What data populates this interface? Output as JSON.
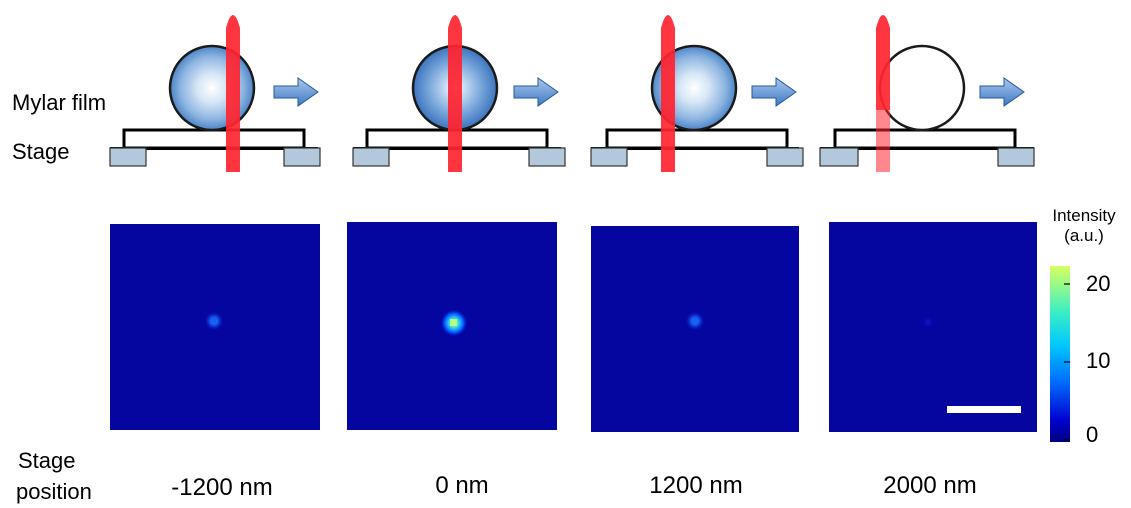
{
  "labels": {
    "mylar_film": "Mylar film",
    "stage": "Stage",
    "stage_position_line1": "Stage",
    "stage_position_line2": "position"
  },
  "panels": [
    {
      "position": "-1200 nm",
      "ball_fill": "partial",
      "spot_intensity": 8
    },
    {
      "position": "0 nm",
      "ball_fill": "full",
      "spot_intensity": 20
    },
    {
      "position": "1200 nm",
      "ball_fill": "partial",
      "spot_intensity": 8
    },
    {
      "position": "2000 nm",
      "ball_fill": "empty",
      "spot_intensity": 1
    }
  ],
  "colorbar": {
    "title_line1": "Intensity",
    "title_line2": "(a.u.)",
    "ticks": [
      "20",
      "10",
      "0"
    ],
    "min": 0,
    "max": 22,
    "colormap": "jet",
    "colors": {
      "low": "#00008f",
      "mid": "#00aaff",
      "high": "#c8ff66"
    }
  },
  "colors": {
    "laser": "#e8202a",
    "ball_edge": "#1a1a1a",
    "ball_core": "#ffffff",
    "ball_rim": "#4b84c8",
    "arrow": "#5b93d6",
    "stage_pad": "#b4c8dc",
    "map_bg": "#0505a0"
  }
}
